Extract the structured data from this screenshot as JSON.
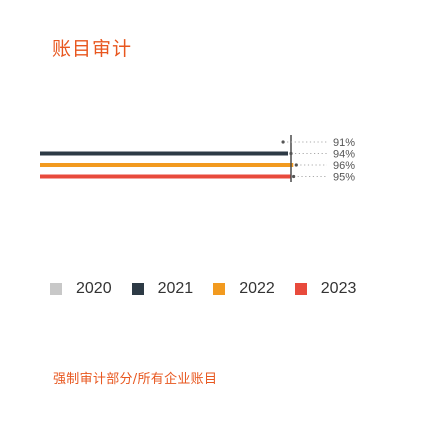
{
  "chart_data": {
    "type": "bar",
    "orientation": "horizontal",
    "title": "账目审计",
    "footnote": "强制审计部分/所有企业账目",
    "unit": "%",
    "xlim": [
      0,
      100
    ],
    "grid": false,
    "legend_position": "bottom",
    "series": [
      {
        "name": "2020",
        "value": 91,
        "label": "91%",
        "color": "#c8c8c8"
      },
      {
        "name": "2021",
        "value": 94,
        "label": "94%",
        "color": "#2d3a45"
      },
      {
        "name": "2022",
        "value": 96,
        "label": "96%",
        "color": "#f29a1f"
      },
      {
        "name": "2023",
        "value": 95,
        "label": "95%",
        "color": "#e84a3c"
      }
    ]
  }
}
